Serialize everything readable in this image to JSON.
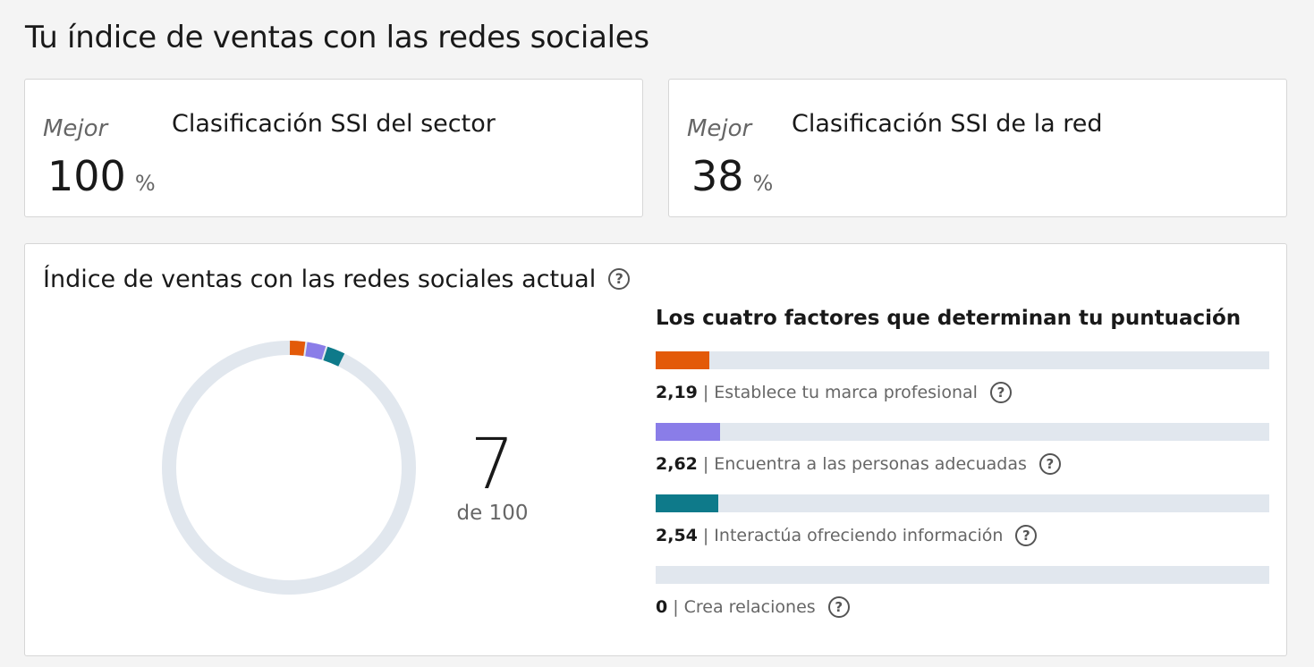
{
  "page": {
    "title": "Tu índice de ventas con las redes sociales"
  },
  "rankings": {
    "sector": {
      "label": "Mejor",
      "value": "100",
      "unit": "%",
      "title": "Clasificación SSI del sector"
    },
    "network": {
      "label": "Mejor",
      "value": "38",
      "unit": "%",
      "title": "Clasificación SSI de la red"
    }
  },
  "score": {
    "title": "Índice de ventas con las redes sociales actual",
    "value": "7",
    "of_label": "de 100",
    "max": 100,
    "track_color": "#e1e7ee"
  },
  "factors": {
    "title": "Los cuatro factores que determinan tu puntuación",
    "max": 25,
    "separator": "|",
    "items": [
      {
        "value": "2,19",
        "number": 2.19,
        "label": "Establece tu marca profesional",
        "color": "#e35a09"
      },
      {
        "value": "2,62",
        "number": 2.62,
        "label": "Encuentra a las personas adecuadas",
        "color": "#8a7de8"
      },
      {
        "value": "2,54",
        "number": 2.54,
        "label": "Interactúa ofreciendo información",
        "color": "#0e7a8a"
      },
      {
        "value": "0",
        "number": 0,
        "label": "Crea relaciones",
        "color": "#e1e7ee"
      }
    ]
  },
  "icons": {
    "help": "help-circle-icon",
    "help_glyph": "?"
  }
}
